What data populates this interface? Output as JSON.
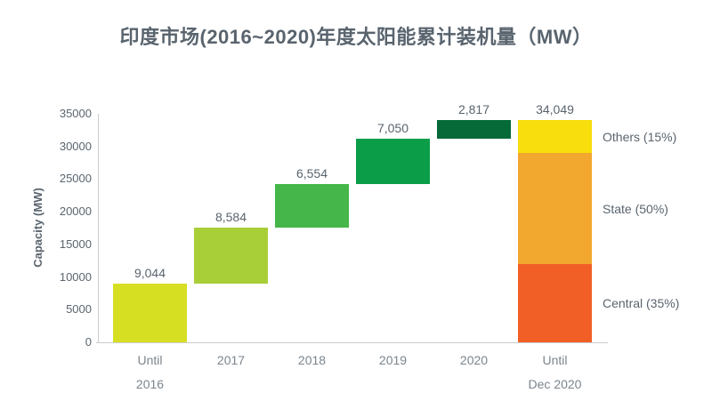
{
  "title": "印度市场(2016~2020)年度太阳能累计装机量（MW）",
  "colors": {
    "title_text": "#59646e",
    "axis_text": "#5a646e",
    "x_axis_text": "#7b858d",
    "axis_line": "#c9ccd0"
  },
  "chart_data": {
    "type": "bar",
    "subtype": "waterfall",
    "title": "印度市场(2016~2020)年度太阳能累计装机量（MW）",
    "xlabel": "",
    "ylabel": "Capacity (MW)",
    "ylim": [
      0,
      35000
    ],
    "grid": false,
    "yticks": [
      "0",
      "5000",
      "10000",
      "15000",
      "20000",
      "25000",
      "30000",
      "35000"
    ],
    "ytick_values": [
      0,
      5000,
      10000,
      15000,
      20000,
      25000,
      30000,
      35000
    ],
    "categories": [
      "Until 2016",
      "2017",
      "2018",
      "2019",
      "2020",
      "Until Dec 2020"
    ],
    "bars": [
      {
        "name": "until-2016",
        "x_label_lines": [
          "Until",
          "2016"
        ],
        "start": 0,
        "end": 9044,
        "value": 9044,
        "data_label": "9,044",
        "color": "#d7df23"
      },
      {
        "name": "2017",
        "x_label_lines": [
          "2017"
        ],
        "start": 9044,
        "end": 17628,
        "value": 8584,
        "data_label": "8,584",
        "color": "#a8ce38"
      },
      {
        "name": "2018",
        "x_label_lines": [
          "2018"
        ],
        "start": 17628,
        "end": 24182,
        "value": 6554,
        "data_label": "6,554",
        "color": "#45b649"
      },
      {
        "name": "2019",
        "x_label_lines": [
          "2019"
        ],
        "start": 24182,
        "end": 31232,
        "value": 7050,
        "data_label": "7,050",
        "color": "#0c9d49"
      },
      {
        "name": "2020",
        "x_label_lines": [
          "2020"
        ],
        "start": 31232,
        "end": 34049,
        "value": 2817,
        "data_label": "2,817",
        "color": "#056a38"
      },
      {
        "name": "until-dec-2020",
        "x_label_lines": [
          "Until",
          "Dec 2020"
        ],
        "start": 0,
        "end": 34049,
        "value": 34049,
        "data_label": "34,049",
        "stacked": true,
        "segments": [
          {
            "name": "central",
            "label": "Central (35%)",
            "percent": 35,
            "color": "#f15f26"
          },
          {
            "name": "state",
            "label": "State (50%)",
            "percent": 50,
            "color": "#f2a72e"
          },
          {
            "name": "others",
            "label": "Others (15%)",
            "percent": 15,
            "color": "#f8de0d"
          }
        ]
      }
    ]
  }
}
